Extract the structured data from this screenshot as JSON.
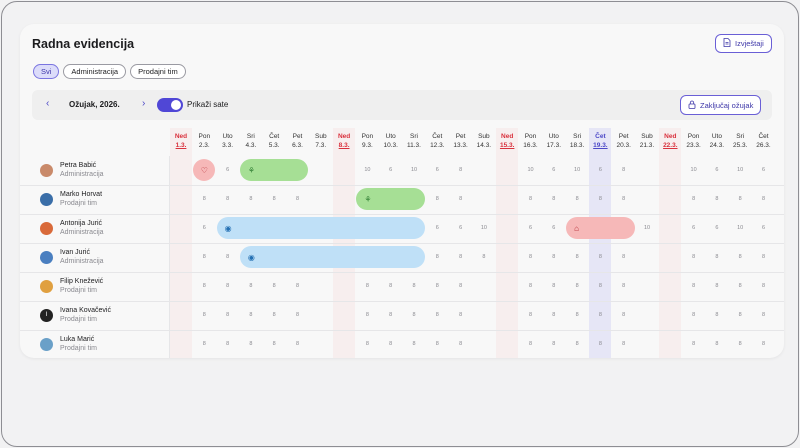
{
  "header": {
    "title": "Radna evidencija",
    "report_button": "Izvještaji"
  },
  "filters": [
    {
      "label": "Svi",
      "active": true
    },
    {
      "label": "Administracija",
      "active": false
    },
    {
      "label": "Prodajni tim",
      "active": false
    }
  ],
  "toolbar": {
    "prev_icon": "‹",
    "next_icon": "›",
    "month": "Ožujak, 2026.",
    "toggle_label": "Prikaži sate",
    "toggle_on": true,
    "lock_button": "Zaključaj ožujak"
  },
  "days": [
    {
      "dow": "Ned",
      "date": "1.3.",
      "type": "ned"
    },
    {
      "dow": "Pon",
      "date": "2.3.",
      "type": ""
    },
    {
      "dow": "Uto",
      "date": "3.3.",
      "type": ""
    },
    {
      "dow": "Sri",
      "date": "4.3.",
      "type": ""
    },
    {
      "dow": "Čet",
      "date": "5.3.",
      "type": ""
    },
    {
      "dow": "Pet",
      "date": "6.3.",
      "type": ""
    },
    {
      "dow": "Sub",
      "date": "7.3.",
      "type": ""
    },
    {
      "dow": "Ned",
      "date": "8.3.",
      "type": "ned"
    },
    {
      "dow": "Pon",
      "date": "9.3.",
      "type": ""
    },
    {
      "dow": "Uto",
      "date": "10.3.",
      "type": ""
    },
    {
      "dow": "Sri",
      "date": "11.3.",
      "type": ""
    },
    {
      "dow": "Čet",
      "date": "12.3.",
      "type": ""
    },
    {
      "dow": "Pet",
      "date": "13.3.",
      "type": ""
    },
    {
      "dow": "Sub",
      "date": "14.3.",
      "type": ""
    },
    {
      "dow": "Ned",
      "date": "15.3.",
      "type": "ned"
    },
    {
      "dow": "Pon",
      "date": "16.3.",
      "type": ""
    },
    {
      "dow": "Uto",
      "date": "17.3.",
      "type": ""
    },
    {
      "dow": "Sri",
      "date": "18.3.",
      "type": ""
    },
    {
      "dow": "Čet",
      "date": "19.3.",
      "type": "today"
    },
    {
      "dow": "Pet",
      "date": "20.3.",
      "type": ""
    },
    {
      "dow": "Sub",
      "date": "21.3.",
      "type": ""
    },
    {
      "dow": "Ned",
      "date": "22.3.",
      "type": "ned"
    },
    {
      "dow": "Pon",
      "date": "23.3.",
      "type": ""
    },
    {
      "dow": "Uto",
      "date": "24.3.",
      "type": ""
    },
    {
      "dow": "Sri",
      "date": "25.3.",
      "type": ""
    },
    {
      "dow": "Čet",
      "date": "26.3.",
      "type": ""
    }
  ],
  "employees": [
    {
      "name": "Petra Babić",
      "dept": "Administracija",
      "avatar_color": "#c98a6a",
      "hours": [
        "",
        "",
        "6",
        "",
        "",
        "",
        "",
        "",
        "10",
        "6",
        "10",
        "6",
        "8",
        "",
        "",
        "10",
        "6",
        "10",
        "6",
        "8",
        "",
        "",
        "10",
        "6",
        "10",
        "6"
      ],
      "bars": [
        {
          "kind": "pink",
          "icon": "heart-icon",
          "glyph": "♡",
          "start": 1,
          "end": 1
        },
        {
          "kind": "green",
          "icon": "palm-tree-icon",
          "glyph": "⚘",
          "start": 3,
          "end": 5
        }
      ]
    },
    {
      "name": "Marko Horvat",
      "dept": "Prodajni tim",
      "avatar_color": "#3a6ea8",
      "hours": [
        "",
        "8",
        "8",
        "8",
        "8",
        "8",
        "",
        "",
        "",
        "",
        "",
        "8",
        "8",
        "",
        "",
        "8",
        "8",
        "8",
        "8",
        "8",
        "",
        "",
        "8",
        "8",
        "8",
        "8"
      ],
      "bars": [
        {
          "kind": "green",
          "icon": "palm-tree-icon",
          "glyph": "⚘",
          "start": 8,
          "end": 10
        }
      ]
    },
    {
      "name": "Antonija Jurić",
      "dept": "Administracija",
      "avatar_color": "#d96a3a",
      "hours": [
        "",
        "6",
        "",
        "",
        "",
        "",
        "",
        "",
        "",
        "",
        "",
        "6",
        "6",
        "10",
        "",
        "6",
        "6",
        "",
        "",
        "",
        "10",
        "",
        "6",
        "6",
        "10",
        "6"
      ],
      "bars": [
        {
          "kind": "blue",
          "icon": "eye-icon",
          "glyph": "◉",
          "start": 2,
          "end": 10
        },
        {
          "kind": "pink",
          "icon": "home-icon",
          "glyph": "⌂",
          "start": 17,
          "end": 19
        }
      ]
    },
    {
      "name": "Ivan Jurić",
      "dept": "Administracija",
      "avatar_color": "#4a7fc0",
      "hours": [
        "",
        "8",
        "8",
        "",
        "",
        "",
        "",
        "",
        "",
        "",
        "",
        "8",
        "8",
        "8",
        "",
        "8",
        "8",
        "8",
        "8",
        "8",
        "",
        "",
        "8",
        "8",
        "8",
        "8"
      ],
      "bars": [
        {
          "kind": "blue",
          "icon": "eye-icon",
          "glyph": "◉",
          "start": 3,
          "end": 10
        }
      ]
    },
    {
      "name": "Filip Knežević",
      "dept": "Prodajni tim",
      "avatar_color": "#e0a040",
      "hours": [
        "",
        "8",
        "8",
        "8",
        "8",
        "8",
        "",
        "",
        "8",
        "8",
        "8",
        "8",
        "8",
        "",
        "",
        "8",
        "8",
        "8",
        "8",
        "8",
        "",
        "",
        "8",
        "8",
        "8",
        "8"
      ],
      "bars": []
    },
    {
      "name": "Ivana Kovačević",
      "dept": "Prodajni tim",
      "avatar_color": "#222222",
      "hours": [
        "",
        "8",
        "8",
        "8",
        "8",
        "8",
        "",
        "",
        "8",
        "8",
        "8",
        "8",
        "8",
        "",
        "",
        "8",
        "8",
        "8",
        "8",
        "8",
        "",
        "",
        "8",
        "8",
        "8",
        "8"
      ],
      "bars": []
    },
    {
      "name": "Luka Marić",
      "dept": "Prodajni tim",
      "avatar_color": "#6aa0c8",
      "hours": [
        "",
        "8",
        "8",
        "8",
        "8",
        "8",
        "",
        "",
        "8",
        "8",
        "8",
        "8",
        "8",
        "",
        "",
        "8",
        "8",
        "8",
        "8",
        "8",
        "",
        "",
        "8",
        "8",
        "8",
        "8"
      ],
      "bars": []
    }
  ],
  "colors": {
    "accent": "#5047d6",
    "sunday": "#d9303c",
    "today_bg": "#e6e6f6",
    "sunday_bg": "#f7eeee"
  }
}
